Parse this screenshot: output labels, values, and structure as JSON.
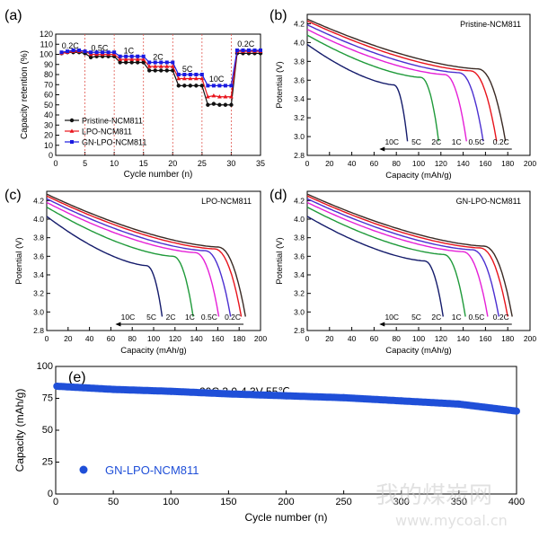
{
  "colors": {
    "black": "#111111",
    "red": "#e8141c",
    "blue": "#1a1ae0",
    "discharge_curves": [
      "#141b6b",
      "#1f9a3a",
      "#e51fd7",
      "#4b2fd0",
      "#e8141c",
      "#3a2a24"
    ],
    "cycling_blue": "#1f4fd8"
  },
  "chart_data": [
    {
      "panel": "(a)",
      "type": "line",
      "xlabel": "Cycle number (n)",
      "ylabel": "Capacity retention (%)",
      "xlim": [
        0,
        35
      ],
      "ylim": [
        0,
        120
      ],
      "xticks": [
        0,
        5,
        10,
        15,
        20,
        25,
        30,
        35
      ],
      "yticks": [
        0,
        10,
        20,
        30,
        40,
        50,
        60,
        70,
        80,
        90,
        100,
        110,
        120
      ],
      "rate_labels": [
        {
          "label": "0.2C",
          "x": 2.5,
          "y": 104
        },
        {
          "label": "0.5C",
          "x": 7.5,
          "y": 102
        },
        {
          "label": "1C",
          "x": 12.5,
          "y": 99
        },
        {
          "label": "2C",
          "x": 17.5,
          "y": 93
        },
        {
          "label": "5C",
          "x": 22.5,
          "y": 81
        },
        {
          "label": "10C",
          "x": 27.5,
          "y": 71
        },
        {
          "label": "0.2C",
          "x": 32.5,
          "y": 106
        }
      ],
      "dividers": [
        5,
        10,
        15,
        20,
        25,
        30
      ],
      "legend": "bottom-left",
      "series": [
        {
          "name": "Pristine-NCM811",
          "color_key": "black",
          "marker": "circle",
          "x": [
            1,
            2,
            3,
            4,
            5,
            6,
            7,
            8,
            9,
            10,
            11,
            12,
            13,
            14,
            15,
            16,
            17,
            18,
            19,
            20,
            21,
            22,
            23,
            24,
            25,
            26,
            27,
            28,
            29,
            30,
            31,
            32,
            33,
            34,
            35
          ],
          "y": [
            101,
            102,
            102,
            102,
            101,
            97,
            98,
            98,
            98,
            98,
            92,
            92,
            92,
            92,
            92,
            84,
            84,
            84,
            84,
            84,
            69,
            69,
            69,
            69,
            69,
            50,
            51,
            50,
            50,
            50,
            101,
            101,
            101,
            101,
            101
          ]
        },
        {
          "name": "LPO-NCM811",
          "color_key": "red",
          "marker": "triangle",
          "x": [
            1,
            2,
            3,
            4,
            5,
            6,
            7,
            8,
            9,
            10,
            11,
            12,
            13,
            14,
            15,
            16,
            17,
            18,
            19,
            20,
            21,
            22,
            23,
            24,
            25,
            26,
            27,
            28,
            29,
            30,
            31,
            32,
            33,
            34,
            35
          ],
          "y": [
            101,
            102,
            103,
            103,
            103,
            100,
            100,
            100,
            100,
            100,
            95,
            95,
            95,
            95,
            95,
            88,
            88,
            88,
            88,
            88,
            76,
            76,
            76,
            76,
            76,
            58,
            59,
            58,
            58,
            58,
            103,
            103,
            103,
            103,
            103
          ]
        },
        {
          "name": "GN-LPO-NCM811",
          "color_key": "blue",
          "marker": "square",
          "x": [
            1,
            2,
            3,
            4,
            5,
            6,
            7,
            8,
            9,
            10,
            11,
            12,
            13,
            14,
            15,
            16,
            17,
            18,
            19,
            20,
            21,
            22,
            23,
            24,
            25,
            26,
            27,
            28,
            29,
            30,
            31,
            32,
            33,
            34,
            35
          ],
          "y": [
            102,
            103,
            104,
            104,
            103,
            102,
            102,
            102,
            102,
            102,
            98,
            98,
            98,
            98,
            98,
            92,
            92,
            92,
            92,
            92,
            80,
            80,
            80,
            80,
            80,
            69,
            69,
            69,
            69,
            69,
            104,
            104,
            104,
            104,
            104
          ]
        }
      ]
    },
    {
      "panel": "(b)",
      "type": "line",
      "title": "Pristine-NCM811",
      "xlabel": "Capacity (mAh/g)",
      "ylabel": "Potential (V)",
      "xlim": [
        0,
        200
      ],
      "ylim": [
        2.8,
        4.3
      ],
      "xticks": [
        0,
        20,
        40,
        60,
        80,
        100,
        120,
        140,
        160,
        180,
        200
      ],
      "yticks": [
        2.8,
        3.0,
        3.2,
        3.4,
        3.6,
        3.8,
        4.0,
        4.2
      ],
      "rate_labels": [
        "10C",
        "5C",
        "2C",
        "1C",
        "0.5C",
        "0.2C"
      ],
      "end_capacities": [
        90,
        118,
        143,
        158,
        170,
        178
      ],
      "start_potentials": [
        3.95,
        4.05,
        4.11,
        4.16,
        4.2,
        4.22
      ],
      "plateau_potentials": [
        3.55,
        3.63,
        3.66,
        3.68,
        3.7,
        3.72
      ]
    },
    {
      "panel": "(c)",
      "type": "line",
      "title": "LPO-NCM811",
      "xlabel": "Capacity (mAh/g)",
      "ylabel": "Potential (V)",
      "xlim": [
        0,
        200
      ],
      "ylim": [
        2.8,
        4.3
      ],
      "xticks": [
        0,
        20,
        40,
        60,
        80,
        100,
        120,
        140,
        160,
        180,
        200
      ],
      "yticks": [
        2.8,
        3.0,
        3.2,
        3.4,
        3.6,
        3.8,
        4.0,
        4.2
      ],
      "rate_labels": [
        "10C",
        "5C",
        "2C",
        "1C",
        "0.5C",
        "0.2C"
      ],
      "end_capacities": [
        108,
        137,
        161,
        172,
        182,
        186
      ],
      "start_potentials": [
        4.0,
        4.1,
        4.15,
        4.19,
        4.22,
        4.24
      ],
      "plateau_potentials": [
        3.5,
        3.6,
        3.64,
        3.66,
        3.68,
        3.7
      ]
    },
    {
      "panel": "(d)",
      "type": "line",
      "title": "GN-LPO-NCM811",
      "xlabel": "Capacity (mAh/g)",
      "ylabel": "Potential (V)",
      "xlim": [
        0,
        200
      ],
      "ylim": [
        2.8,
        4.3
      ],
      "xticks": [
        0,
        20,
        40,
        60,
        80,
        100,
        120,
        140,
        160,
        180,
        200
      ],
      "yticks": [
        2.8,
        3.0,
        3.2,
        3.4,
        3.6,
        3.8,
        4.0,
        4.2
      ],
      "rate_labels": [
        "10C",
        "5C",
        "2C",
        "1C",
        "0.5C",
        "0.2C"
      ],
      "end_capacities": [
        122,
        142,
        162,
        172,
        180,
        184
      ],
      "start_potentials": [
        4.0,
        4.1,
        4.15,
        4.19,
        4.22,
        4.24
      ],
      "plateau_potentials": [
        3.55,
        3.62,
        3.65,
        3.67,
        3.69,
        3.71
      ]
    },
    {
      "panel": "(e)",
      "type": "scatter",
      "annotation": "20C   3.0-4.3V   55℃",
      "xlabel": "Cycle number (n)",
      "ylabel": "Capacity (mAh/g)",
      "xlim": [
        0,
        400
      ],
      "ylim": [
        0,
        100
      ],
      "xticks": [
        0,
        50,
        100,
        150,
        200,
        250,
        300,
        350,
        400
      ],
      "yticks": [
        0,
        25,
        50,
        75,
        100
      ],
      "legend": "bottom-left",
      "series": [
        {
          "name": "GN-LPO-NCM811",
          "color_key": "cycling_blue",
          "x": [
            1,
            50,
            100,
            150,
            200,
            250,
            300,
            350,
            400
          ],
          "y": [
            84.5,
            82.0,
            80.5,
            78.5,
            77.0,
            75.5,
            73.0,
            70.5,
            65.0
          ]
        }
      ]
    }
  ],
  "watermark": {
    "cn": "我的煤炭网",
    "url": "www.mycoal.cn"
  }
}
